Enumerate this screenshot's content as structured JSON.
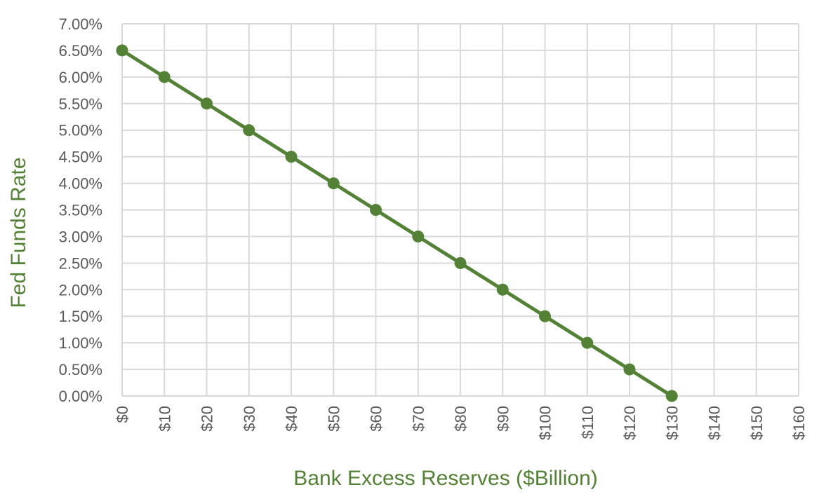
{
  "chart_data": {
    "type": "line",
    "title": "",
    "xlabel": "Bank Excess Reserves ($Billion)",
    "ylabel": "Fed Funds Rate",
    "xlim": [
      0,
      160
    ],
    "ylim": [
      0,
      7
    ],
    "grid": true,
    "legend": "none",
    "x_ticks": [
      0,
      10,
      20,
      30,
      40,
      50,
      60,
      70,
      80,
      90,
      100,
      110,
      120,
      130,
      140,
      150,
      160
    ],
    "x_tick_labels": [
      "$0",
      "$10",
      "$20",
      "$30",
      "$40",
      "$50",
      "$60",
      "$70",
      "$80",
      "$90",
      "$100",
      "$110",
      "$120",
      "$130",
      "$140",
      "$150",
      "$160"
    ],
    "y_ticks": [
      0,
      0.5,
      1,
      1.5,
      2,
      2.5,
      3,
      3.5,
      4,
      4.5,
      5,
      5.5,
      6,
      6.5,
      7
    ],
    "y_tick_labels": [
      "0.00%",
      "0.50%",
      "1.00%",
      "1.50%",
      "2.00%",
      "2.50%",
      "3.00%",
      "3.50%",
      "4.00%",
      "4.50%",
      "5.00%",
      "5.50%",
      "6.00%",
      "6.50%",
      "7.00%"
    ],
    "series": [
      {
        "x": [
          0,
          10,
          20,
          30,
          40,
          50,
          60,
          70,
          80,
          90,
          100,
          110,
          120,
          130
        ],
        "values": [
          6.5,
          6.0,
          5.5,
          5.0,
          4.5,
          4.0,
          3.5,
          3.0,
          2.5,
          2.0,
          1.5,
          1.0,
          0.5,
          0.0
        ]
      }
    ],
    "colors": {
      "series": "#538135",
      "axis_title": "#538135",
      "grid": "#d9d9d9",
      "tick_text": "#595959"
    }
  }
}
